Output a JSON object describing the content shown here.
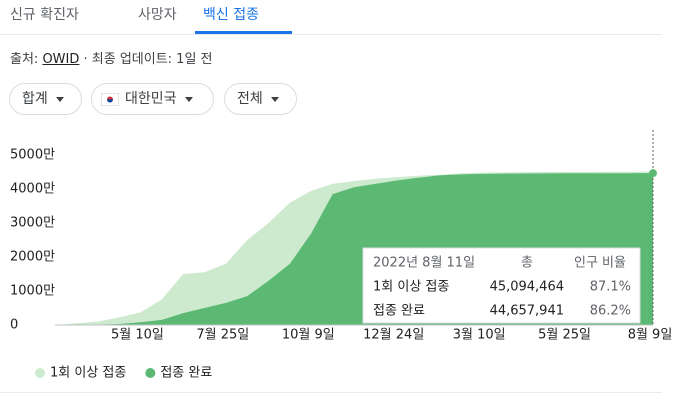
{
  "tabs": [
    "신규 확진자",
    "사망자",
    "백신 접종"
  ],
  "source": {
    "prefix": "출처: ",
    "name": "OWID",
    "suffix": " · 최종 업데이트: 1일 전"
  },
  "filters": [
    "합계",
    "대한민국",
    "전체"
  ],
  "chart_data": {
    "type": "area",
    "categories": [
      null,
      null,
      null,
      null,
      "5월 10일",
      null,
      null,
      null,
      "7월 25일",
      null,
      null,
      null,
      "10월 9일",
      null,
      null,
      null,
      "12월 24일",
      null,
      null,
      null,
      "3월 10일",
      null,
      null,
      null,
      "5월 25일",
      null,
      null,
      null,
      "8월 9일"
    ],
    "series": [
      {
        "name": "1회 이상 접종",
        "color": "#cdeacf",
        "values": [
          0,
          500000,
          1000000,
          2200000,
          3700000,
          7500000,
          15000000,
          15500000,
          18000000,
          25000000,
          30000000,
          36000000,
          39500000,
          41500000,
          42300000,
          43000000,
          43500000,
          43900000,
          44200000,
          44600000,
          44800000,
          44900000,
          44950000,
          45000000,
          45030000,
          45050000,
          45070000,
          45080000,
          45094464
        ]
      },
      {
        "name": "접종 완료",
        "color": "#5bb974",
        "values": [
          0,
          0,
          100000,
          300000,
          800000,
          1500000,
          3500000,
          5000000,
          6500000,
          8500000,
          13000000,
          18000000,
          27000000,
          38500000,
          40500000,
          41500000,
          42500000,
          43300000,
          44000000,
          44300000,
          44450000,
          44520000,
          44570000,
          44600000,
          44620000,
          44630000,
          44640000,
          44650000,
          44657941
        ]
      }
    ],
    "ylim": [
      0,
      50000000
    ],
    "yticks": [
      0,
      {
        "value": 10000000,
        "label": "1000만"
      },
      {
        "value": 20000000,
        "label": "2000만"
      },
      {
        "value": 30000000,
        "label": "3000만"
      },
      {
        "value": 40000000,
        "label": "4000만"
      },
      {
        "value": 50000000,
        "label": "5000만"
      }
    ]
  },
  "tooltip": {
    "date": "2022년 8월 11일",
    "headers": [
      "총",
      "인구 비율"
    ],
    "rows": [
      [
        "1회 이상 접종",
        "45,094,464",
        "87.1%"
      ],
      [
        "접종 완료",
        "44,657,941",
        "86.2%"
      ]
    ]
  }
}
